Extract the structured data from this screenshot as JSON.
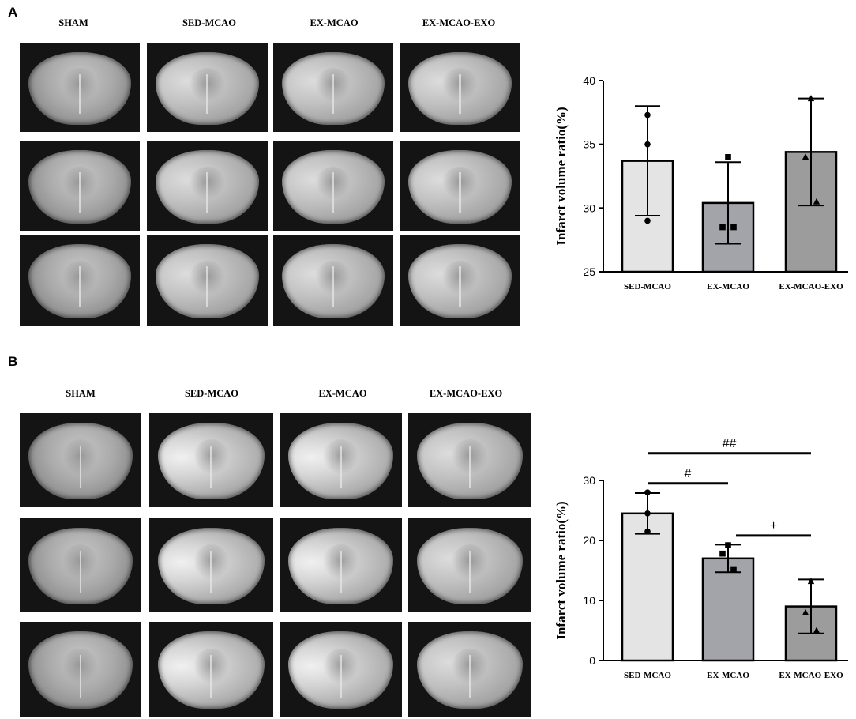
{
  "panels": [
    {
      "letter": "A",
      "columns": [
        "SHAM",
        "SED-MCAO",
        "EX-MCAO",
        "EX-MCAO-EXO"
      ]
    },
    {
      "letter": "B",
      "columns": [
        "SHAM",
        "SED-MCAO",
        "EX-MCAO",
        "EX-MCAO-EXO"
      ]
    }
  ],
  "chart_data": [
    {
      "type": "bar",
      "ylabel": "Infarct volume ratio(%)",
      "ylim": [
        25,
        40
      ],
      "yticks": [
        25,
        30,
        35,
        40
      ],
      "categories": [
        "SED-MCAO",
        "EX-MCAO",
        "EX-MCAO-EXO"
      ],
      "values": [
        33.7,
        30.4,
        34.4
      ],
      "error": [
        4.3,
        3.2,
        4.2
      ],
      "points": [
        [
          37.3,
          35.0,
          29.0
        ],
        [
          34.0,
          28.5,
          28.5
        ],
        [
          38.6,
          34.0,
          30.5
        ]
      ],
      "markers": [
        "circle",
        "square",
        "triangle"
      ],
      "colors": [
        "#e4e4e4",
        "#a3a3aa",
        "#9c9c9c"
      ],
      "significance": []
    },
    {
      "type": "bar",
      "ylabel": "Infarct volume ratio(%)",
      "ylim": [
        0,
        30
      ],
      "yticks": [
        0,
        10,
        20,
        30
      ],
      "categories": [
        "SED-MCAO",
        "EX-MCAO",
        "EX-MCAO-EXO"
      ],
      "values": [
        24.5,
        17.0,
        9.0
      ],
      "error": [
        3.4,
        2.3,
        4.5
      ],
      "points": [
        [
          28.0,
          24.5,
          21.5
        ],
        [
          19.2,
          17.8,
          15.2
        ],
        [
          13.2,
          8.0,
          5.0
        ]
      ],
      "markers": [
        "circle",
        "square",
        "triangle"
      ],
      "colors": [
        "#e4e4e4",
        "#a3a3aa",
        "#9c9c9c"
      ],
      "significance": [
        {
          "from": 0,
          "to": 1,
          "label": "#",
          "y": 29.5
        },
        {
          "from": 0,
          "to": 2,
          "label": "##",
          "y": 34.5
        },
        {
          "from": 1,
          "to": 2,
          "label": "+",
          "y": 20.8
        }
      ]
    }
  ]
}
